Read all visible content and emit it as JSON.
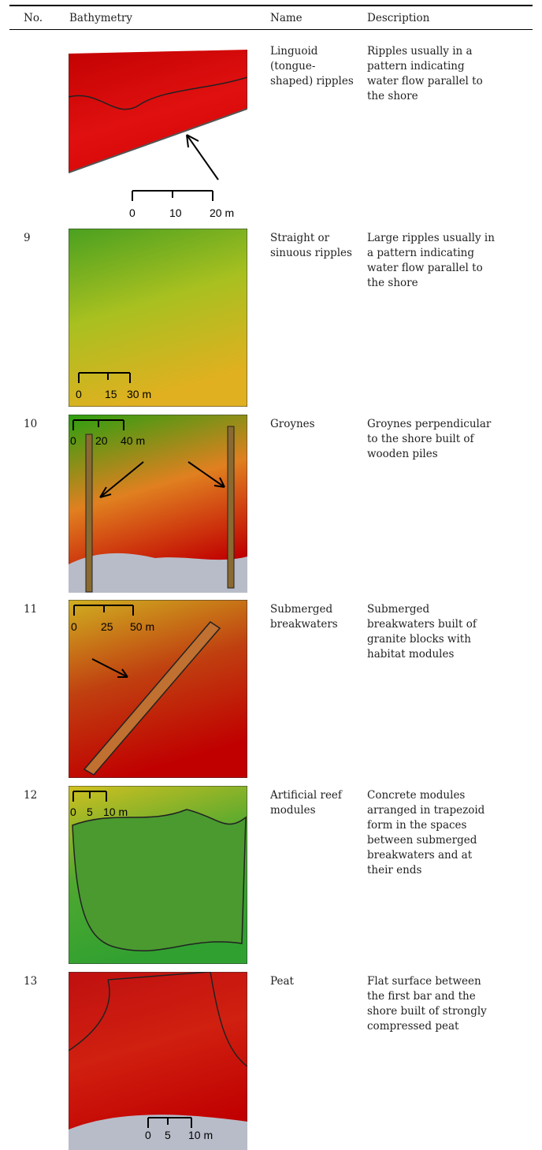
{
  "table": {
    "header": [
      "No.",
      "Bathymetry",
      "Name",
      "Description"
    ],
    "rows": [
      {
        "name": [
          "Linguoid",
          "(tongue-",
          "shaped) ripples"
        ],
        "description": [
          "Ripples usually in a",
          "pattern indicating",
          "water flow parallel to",
          "the shore"
        ],
        "scale": [
          "0",
          "10",
          "20 m"
        ]
      },
      {
        "no": "9",
        "name": [
          "Straight or",
          "sinuous ripples"
        ],
        "description": [
          "Large ripples usually in",
          "a pattern indicating",
          "water flow parallel to",
          "the shore"
        ],
        "scale": [
          "0",
          "15",
          "30 m"
        ]
      },
      {
        "no": "10",
        "name": [
          "Groynes"
        ],
        "description": [
          "Groynes perpendicular",
          "to the shore built of",
          "wooden piles"
        ],
        "scale": [
          "0",
          "20",
          "40 m"
        ]
      },
      {
        "no": "11",
        "name": [
          "Submerged",
          "breakwaters"
        ],
        "description": [
          "Submerged",
          "breakwaters built of",
          "granite blocks with",
          "habitat modules"
        ],
        "scale": [
          "0",
          "25",
          "50 m"
        ]
      },
      {
        "no": "12",
        "name": [
          "Artificial reef",
          "modules"
        ],
        "description": [
          "Concrete modules",
          "arranged in trapezoid",
          "form in the spaces",
          "between submerged",
          "breakwaters and at",
          "their ends"
        ],
        "scale": [
          "0",
          "5",
          "10 m"
        ]
      },
      {
        "no": "13",
        "name": [
          "Peat"
        ],
        "description": [
          "Flat surface between",
          "the first bar and the",
          "shore built of strongly",
          "compressed peat"
        ],
        "scale": [
          "0",
          "5",
          "10 m"
        ]
      }
    ]
  }
}
